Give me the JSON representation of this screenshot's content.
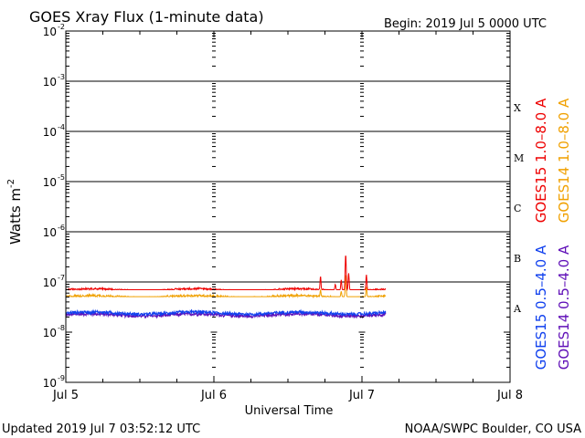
{
  "chart_data": {
    "type": "line",
    "title": "GOES Xray Flux (1-minute data)",
    "begin_label": "Begin:  2019 Jul 5 0000 UTC",
    "xlabel": "Universal Time",
    "ylabel": "Watts m",
    "ylabel_exponent": "-2",
    "x_ticks": [
      "Jul 5",
      "Jul 6",
      "Jul 7",
      "Jul 8"
    ],
    "xlim_days": [
      0,
      3
    ],
    "ylim": [
      1e-09,
      0.01
    ],
    "y_scale": "log",
    "y_tick_mantissa": "10",
    "y_tick_exponents": [
      -2,
      -3,
      -4,
      -5,
      -6,
      -7,
      -8,
      -9
    ],
    "grid": "horizontal at each decade from 1e-7 to 1e-3",
    "flare_classes": [
      {
        "label": "X",
        "flux": 0.0003
      },
      {
        "label": "M",
        "flux": 3e-05
      },
      {
        "label": "C",
        "flux": 3e-06
      },
      {
        "label": "B",
        "flux": 3e-07
      },
      {
        "label": "A",
        "flux": 3e-08
      }
    ],
    "series": [
      {
        "name": "GOES15 1.0–8.0 A",
        "color": "#ee0000",
        "baseline": 7e-08,
        "noise": 0.04,
        "end_day": 2.16,
        "spikes": [
          [
            1.72,
            1.3e-07
          ],
          [
            1.82,
            9e-08
          ],
          [
            1.86,
            1.1e-07
          ],
          [
            1.89,
            3.5e-07
          ],
          [
            1.91,
            1.5e-07
          ],
          [
            2.03,
            1.4e-07
          ]
        ]
      },
      {
        "name": "GOES14 1.0–8.0 A",
        "color": "#f0a000",
        "baseline": 5.1e-08,
        "noise": 0.05,
        "end_day": 2.16,
        "spikes": [
          [
            1.72,
            7e-08
          ],
          [
            1.86,
            6.5e-08
          ],
          [
            1.89,
            1.4e-07
          ],
          [
            2.03,
            8e-08
          ]
        ]
      },
      {
        "name": "GOES15 0.5–4.0 A",
        "color": "#1040ee",
        "baseline": 2.4e-08,
        "noise": 0.07,
        "end_day": 2.16,
        "spikes": []
      },
      {
        "name": "GOES14 0.5–4.0 A",
        "color": "#6010b8",
        "baseline": 2.2e-08,
        "noise": 0.07,
        "end_day": 2.16,
        "spikes": []
      }
    ]
  },
  "footer": {
    "updated": "Updated 2019 Jul  7 03:52:12 UTC",
    "source": "NOAA/SWPC Boulder, CO USA"
  }
}
